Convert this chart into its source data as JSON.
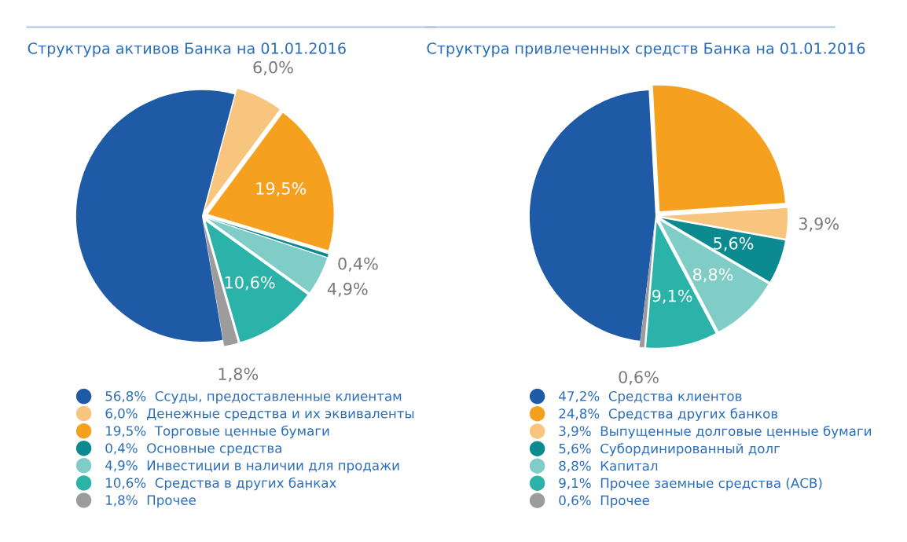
{
  "chart_data": [
    {
      "type": "pie",
      "title": "Структура активов Банка на 01.01.2016",
      "legend": "bottom",
      "categories": [
        "Ссуды, предоставленные клиентам",
        "Денежные средства и их эквиваленты",
        "Торговые ценные бумаги",
        "Основные средства",
        "Инвестиции в наличии для продажи",
        "Средства в других банках",
        "Прочее"
      ],
      "values": [
        56.8,
        6.0,
        19.5,
        0.4,
        4.9,
        10.6,
        1.8
      ],
      "value_labels": [
        "56,8%",
        "6,0%",
        "19,5%",
        "0,4%",
        "4,9%",
        "10,6%",
        "1,8%"
      ],
      "colors": [
        "#1f5aa6",
        "#f8c57e",
        "#f5a11f",
        "#0b8a90",
        "#7fcdc6",
        "#2bb3a9",
        "#9c9c9c"
      ]
    },
    {
      "type": "pie",
      "title": "Структура привлеченных средств Банка на 01.01.2016",
      "legend": "bottom",
      "categories": [
        "Средства клиентов",
        "Средства других банков",
        "Выпущенные долговые ценные бумаги",
        "Субординированный долг",
        "Капитал",
        "Прочее заемные средства (АСВ)",
        "Прочее"
      ],
      "values": [
        47.2,
        24.8,
        3.9,
        5.6,
        8.8,
        9.1,
        0.6
      ],
      "value_labels": [
        "47,2%",
        "24,8%",
        "3,9%",
        "5,6%",
        "8,8%",
        "9,1%",
        "0,6%"
      ],
      "colors": [
        "#1f5aa6",
        "#f5a11f",
        "#f8c57e",
        "#0b8a90",
        "#7fcdc6",
        "#2bb3a9",
        "#9c9c9c"
      ]
    }
  ]
}
